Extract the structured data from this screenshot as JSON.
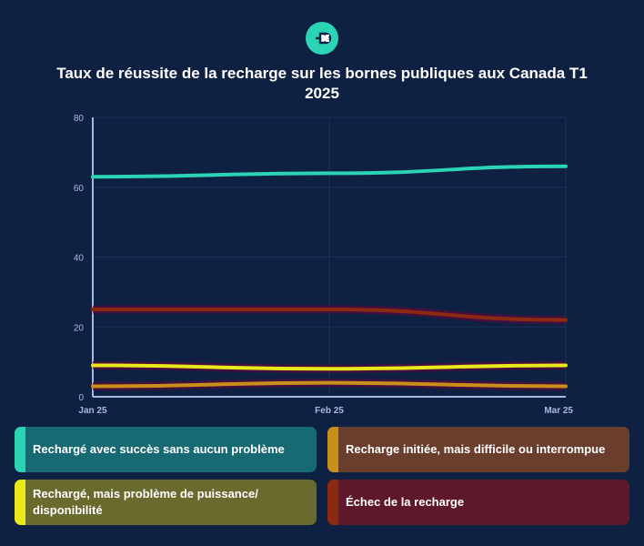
{
  "header": {
    "icon": "ev-plug-icon",
    "title": "Taux de réussite de la recharge sur les bornes publiques aux Canada T1 2025"
  },
  "chart_data": {
    "type": "line",
    "title": "Taux de réussite de la recharge sur les bornes publiques aux Canada T1 2025",
    "xlabel": "",
    "ylabel": "",
    "categories": [
      "Jan 25",
      "Feb 25",
      "Mar 25"
    ],
    "ylim": [
      0,
      80
    ],
    "yticks": [
      0,
      20,
      40,
      60,
      80
    ],
    "grid": true,
    "legend_placement": "bottom",
    "series": [
      {
        "name": "Rechargé avec succès sans aucun problème",
        "values": [
          63,
          64,
          66
        ],
        "color": "#2ad4b5",
        "legend_bg": "#176a72"
      },
      {
        "name": "Recharge initiée, mais difficile ou interrompue",
        "values": [
          3,
          4,
          3
        ],
        "color": "#c8901a",
        "legend_bg": "#6a3e2c"
      },
      {
        "name": "Rechargé, mais problème de puissance/ disponibilité",
        "values": [
          9,
          8,
          9
        ],
        "color": "#e8e81a",
        "legend_bg": "#6a6a2e"
      },
      {
        "name": "Échec de la recharge",
        "values": [
          25,
          25,
          22
        ],
        "color": "#8b2a10",
        "legend_bg": "#5e172b"
      }
    ]
  }
}
